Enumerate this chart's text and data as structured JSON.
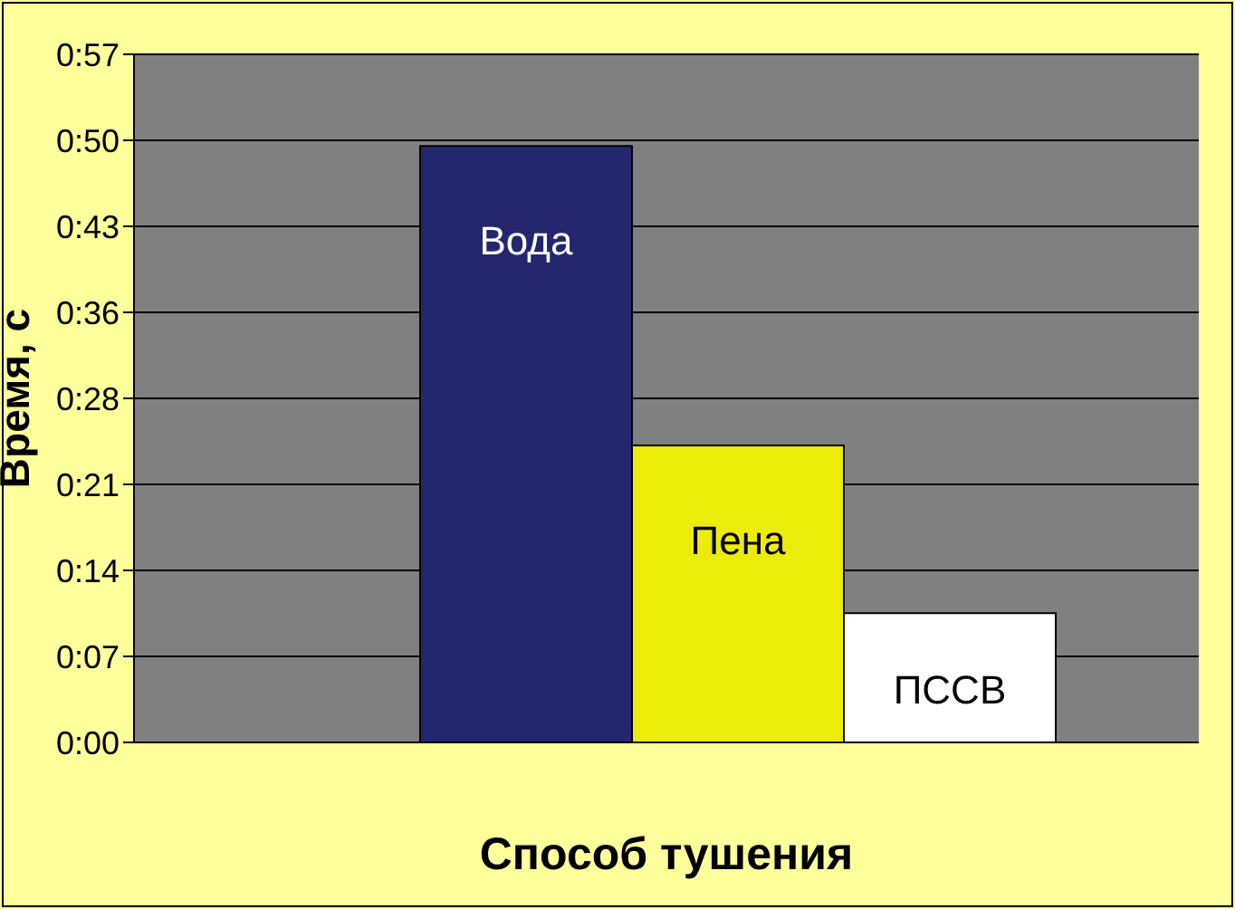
{
  "chart_data": {
    "type": "bar",
    "xlabel": "Способ тушения",
    "ylabel": "Время, с",
    "categories": [
      null
    ],
    "series": [
      {
        "name": "Вода",
        "color": "#24276e",
        "values": [
          49.4
        ]
      },
      {
        "name": "Пена",
        "color": "#ecec0a",
        "values": [
          24.6
        ]
      },
      {
        "name": "ПССВ",
        "color": "#ffffff",
        "values": [
          10.7
        ]
      }
    ],
    "ylim": [
      0,
      57
    ],
    "yticks": [
      {
        "value": 0,
        "label": "0:00"
      },
      {
        "value": 7.125,
        "label": "0:07"
      },
      {
        "value": 14.25,
        "label": "0:14"
      },
      {
        "value": 21.375,
        "label": "0:21"
      },
      {
        "value": 28.5,
        "label": "0:28"
      },
      {
        "value": 35.625,
        "label": "0:36"
      },
      {
        "value": 42.75,
        "label": "0:43"
      },
      {
        "value": 49.875,
        "label": "0:50"
      },
      {
        "value": 57,
        "label": "0:57"
      }
    ],
    "grid": "y",
    "tick_labels": "y",
    "legend": false
  }
}
